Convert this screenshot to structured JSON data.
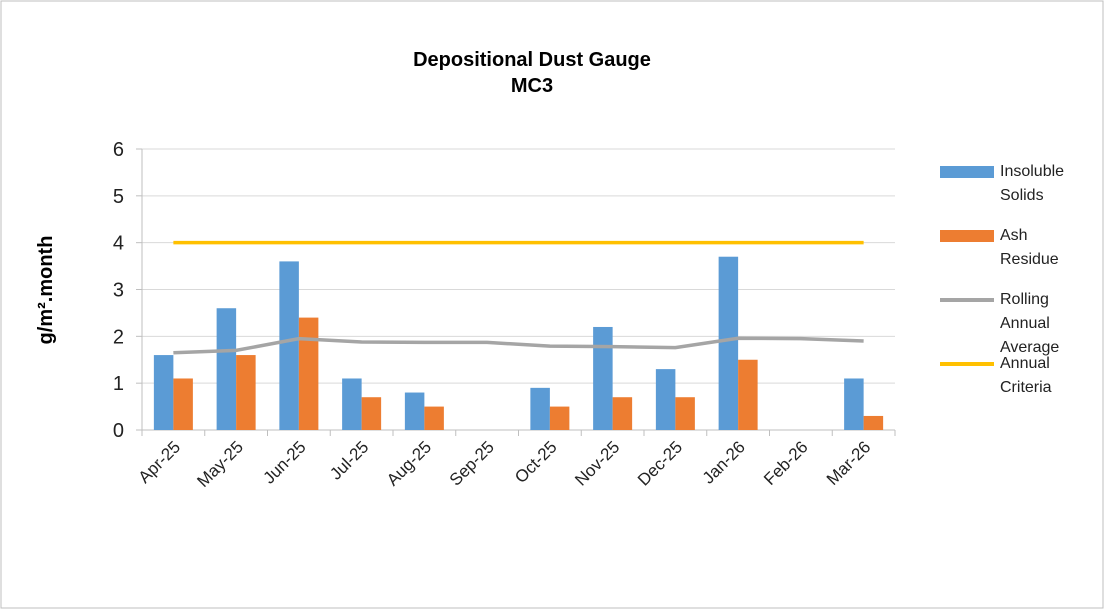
{
  "chart_data": {
    "type": "bar",
    "title": "Depositional Dust Gauge",
    "subtitle": "MC3",
    "y_label": "g/m².month",
    "categories": [
      "Apr-25",
      "May-25",
      "Jun-25",
      "Jul-25",
      "Aug-25",
      "Sep-25",
      "Oct-25",
      "Nov-25",
      "Dec-25",
      "Jan-26",
      "Feb-26",
      "Mar-26"
    ],
    "series": [
      {
        "name": "Insoluble Solids",
        "type": "bar",
        "color": "#5b9bd5",
        "values": [
          1.6,
          2.6,
          3.6,
          1.1,
          0.8,
          null,
          0.9,
          2.2,
          1.3,
          3.7,
          null,
          1.1
        ]
      },
      {
        "name": "Ash Residue",
        "type": "bar",
        "color": "#ed7d31",
        "values": [
          1.1,
          1.6,
          2.4,
          0.7,
          0.5,
          null,
          0.5,
          0.7,
          0.7,
          1.5,
          null,
          0.3
        ]
      },
      {
        "name": "Rolling Annual Average",
        "type": "line",
        "color": "#a5a5a5",
        "values": [
          1.65,
          1.7,
          1.95,
          1.88,
          1.87,
          1.87,
          1.79,
          1.78,
          1.76,
          1.96,
          1.95,
          1.9
        ]
      },
      {
        "name": "Annual Criteria",
        "type": "line",
        "color": "#ffc000",
        "values": [
          4,
          4,
          4,
          4,
          4,
          4,
          4,
          4,
          4,
          4,
          4,
          4
        ]
      }
    ],
    "ylim": [
      0,
      6
    ],
    "yticks": [
      0,
      1,
      2,
      3,
      4,
      5,
      6
    ],
    "grid": true,
    "legend": "right"
  }
}
